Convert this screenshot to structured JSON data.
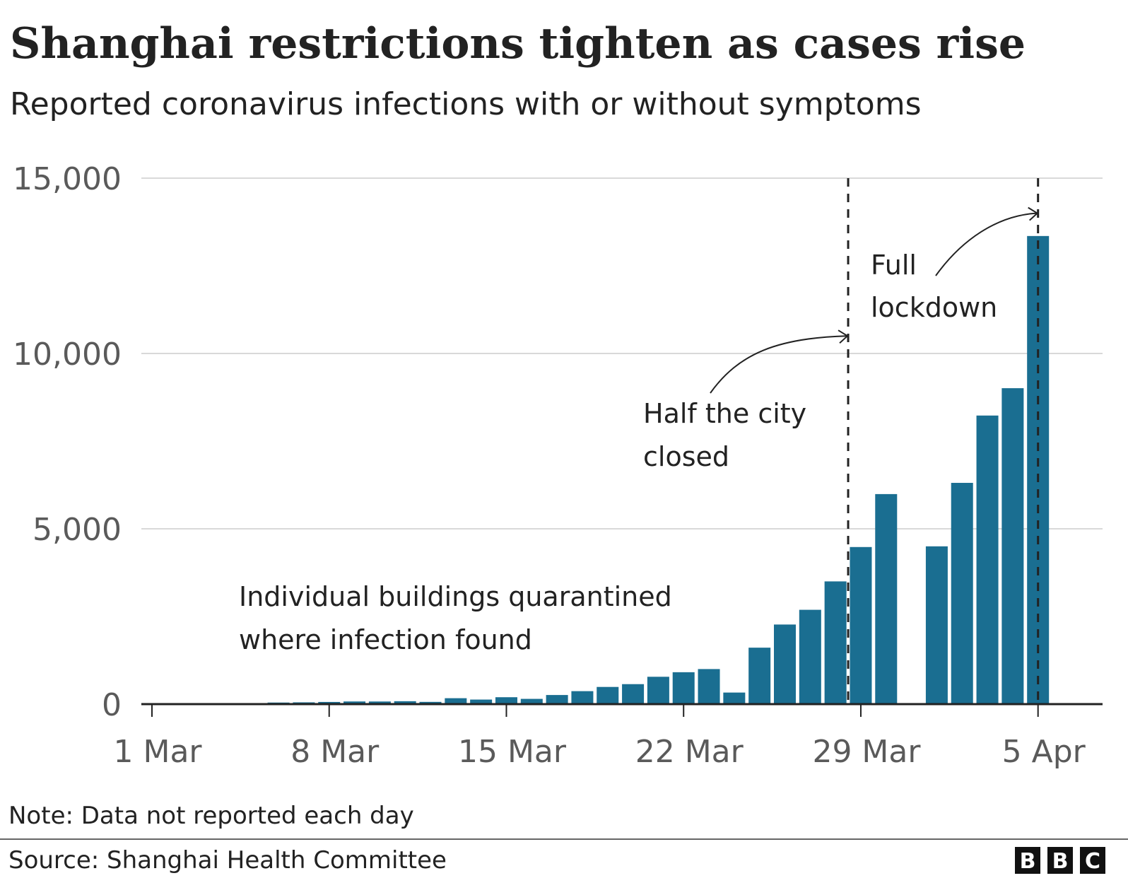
{
  "chart_data": {
    "type": "bar",
    "title": "Shanghai restrictions tighten as cases rise",
    "subtitle": "Reported coronavirus infections with or without symptoms",
    "xlabel": "",
    "ylabel": "",
    "ylim": [
      0,
      15000
    ],
    "yticks": [
      {
        "value": 0,
        "label": "0"
      },
      {
        "value": 5000,
        "label": "5,000"
      },
      {
        "value": 10000,
        "label": "10,000"
      },
      {
        "value": 15000,
        "label": "15,000"
      }
    ],
    "xticks": [
      {
        "day": 1,
        "label": "1 Mar"
      },
      {
        "day": 8,
        "label": "8 Mar"
      },
      {
        "day": 15,
        "label": "15 Mar"
      },
      {
        "day": 22,
        "label": "22 Mar"
      },
      {
        "day": 29,
        "label": "29 Mar"
      },
      {
        "day": 36,
        "label": "5 Apr"
      }
    ],
    "bar_color": "#1a6e91",
    "gridline_color": "#d9d9d9",
    "series": [
      {
        "name": "Reported infections",
        "points": [
          {
            "day": 1,
            "value": 2
          },
          {
            "day": 2,
            "value": 8
          },
          {
            "day": 3,
            "value": 5
          },
          {
            "day": 4,
            "value": 16
          },
          {
            "day": 5,
            "value": 2
          },
          {
            "day": 6,
            "value": 45
          },
          {
            "day": 7,
            "value": 51
          },
          {
            "day": 8,
            "value": 62
          },
          {
            "day": 9,
            "value": 76
          },
          {
            "day": 10,
            "value": 75
          },
          {
            "day": 11,
            "value": 83
          },
          {
            "day": 12,
            "value": 64
          },
          {
            "day": 13,
            "value": 169
          },
          {
            "day": 14,
            "value": 130
          },
          {
            "day": 15,
            "value": 197
          },
          {
            "day": 16,
            "value": 150
          },
          {
            "day": 17,
            "value": 260
          },
          {
            "day": 18,
            "value": 370
          },
          {
            "day": 19,
            "value": 490
          },
          {
            "day": 20,
            "value": 570
          },
          {
            "day": 21,
            "value": 780
          },
          {
            "day": 22,
            "value": 910
          },
          {
            "day": 23,
            "value": 1000
          },
          {
            "day": 24,
            "value": 330
          },
          {
            "day": 25,
            "value": 1610
          },
          {
            "day": 26,
            "value": 2270
          },
          {
            "day": 27,
            "value": 2690
          },
          {
            "day": 28,
            "value": 3500
          },
          {
            "day": 29,
            "value": 4480
          },
          {
            "day": 30,
            "value": 5990
          },
          {
            "day": 32,
            "value": 4500
          },
          {
            "day": 33,
            "value": 6310
          },
          {
            "day": 34,
            "value": 8230
          },
          {
            "day": 35,
            "value": 9010
          },
          {
            "day": 36,
            "value": 13350
          }
        ]
      }
    ],
    "events": [
      {
        "day": 28.5,
        "label_lines": [
          "Half the city",
          "closed"
        ],
        "arrow_to_value": 10500
      },
      {
        "day": 36,
        "label_lines": [
          "Full",
          "lockdown"
        ],
        "arrow_to_value": 14000
      }
    ],
    "annotation_lines": [
      "Individual buildings quarantined",
      "where infection found"
    ],
    "note": "Note: Data not reported each day",
    "source": "Source: Shanghai Health Committee",
    "logo_letters": [
      "B",
      "B",
      "C"
    ]
  }
}
